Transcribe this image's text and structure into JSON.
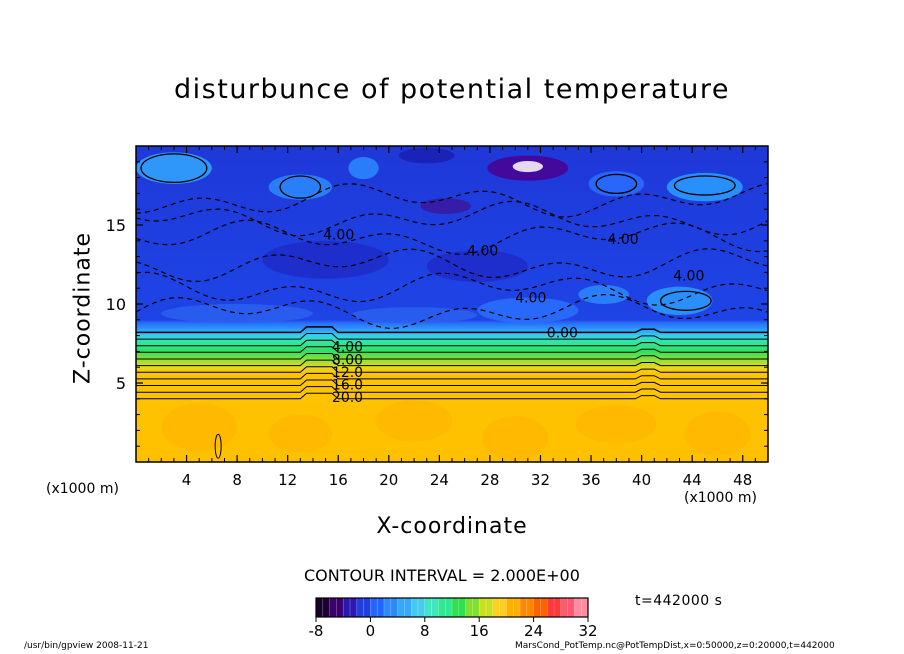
{
  "chart_data": {
    "type": "heatmap",
    "title": "disturbunce of potential temperature",
    "xlabel": "X-coordinate",
    "ylabel": "Z-coordinate",
    "xunit": "(x1000 m)",
    "yunit": "(x1000 m)",
    "xlim": [
      0,
      50
    ],
    "ylim": [
      0,
      20
    ],
    "xticks": [
      4,
      8,
      12,
      16,
      20,
      24,
      28,
      32,
      36,
      40,
      44,
      48
    ],
    "yticks": [
      5,
      10,
      15
    ],
    "contour_interval": "CONTOUR INTERVAL = 2.000E+00",
    "colorbar": {
      "min": -8,
      "max": 32,
      "ticks": [
        -8,
        0,
        8,
        16,
        24,
        32
      ],
      "colors": [
        "#1a0030",
        "#3a0070",
        "#2a18b0",
        "#1e3ee0",
        "#2266ff",
        "#2b88ff",
        "#33aaff",
        "#44ccf0",
        "#40e8c0",
        "#30e890",
        "#30e050",
        "#80e030",
        "#c8e020",
        "#ffd020",
        "#ffb000",
        "#ff8800",
        "#ff6000",
        "#ff3838",
        "#ff5a70",
        "#ff8ca0"
      ]
    },
    "contour_labels": [
      {
        "text": "4.00",
        "x": 15.5,
        "z": 7.3
      },
      {
        "text": "8.00",
        "x": 15.5,
        "z": 6.5
      },
      {
        "text": "12.0",
        "x": 15.5,
        "z": 5.7
      },
      {
        "text": "16.0",
        "x": 15.5,
        "z": 4.9
      },
      {
        "text": "20.0",
        "x": 15.5,
        "z": 4.1
      },
      {
        "text": "0.00",
        "x": 32.5,
        "z": 8.2
      },
      {
        "text": "4.00",
        "x": 14.8,
        "z": 14.4
      },
      {
        "text": "4.00",
        "x": 26.2,
        "z": 13.4
      },
      {
        "text": "4.00",
        "x": 37.3,
        "z": 14.1
      },
      {
        "text": "4.00",
        "x": 42.5,
        "z": 11.8
      },
      {
        "text": "4.00",
        "x": 30.0,
        "z": 10.4
      }
    ],
    "time_label": "t=442000 s"
  },
  "footer": {
    "left": "/usr/bin/gpview   2008-11-21",
    "right": "MarsCond_PotTemp.nc@PotTempDist,x=0:50000,z=0:20000,t=442000"
  }
}
